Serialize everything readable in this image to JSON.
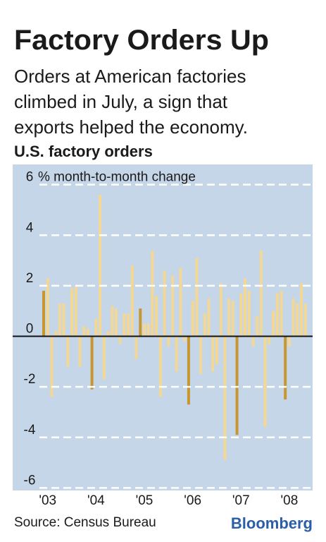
{
  "chart_data": {
    "type": "bar",
    "title": "Factory Orders Up",
    "subtitle": [
      "Orders at American factories",
      "climbed in July, a sign that",
      "exports helped the economy."
    ],
    "chart_title": "U.S. factory orders",
    "y_axis_label": "% month-to-month change",
    "source": "Source: Census Bureau",
    "brand": "Bloomberg",
    "categories": [
      null,
      "'03",
      null,
      null,
      null,
      null,
      null,
      null,
      null,
      null,
      null,
      null,
      null,
      "'04",
      null,
      null,
      null,
      null,
      null,
      null,
      null,
      null,
      null,
      null,
      null,
      "'05",
      null,
      null,
      null,
      null,
      null,
      null,
      null,
      null,
      null,
      null,
      null,
      "'06",
      null,
      null,
      null,
      null,
      null,
      null,
      null,
      null,
      null,
      null,
      null,
      "'07",
      null,
      null,
      null,
      null,
      null,
      null,
      null,
      null,
      null,
      null,
      null,
      "'08",
      null,
      null,
      null,
      null
    ],
    "values": [
      1.8,
      2.3,
      -2.4,
      0.2,
      1.3,
      1.3,
      -1.2,
      1.9,
      2.0,
      -1.2,
      0.4,
      0.3,
      -2.1,
      0.7,
      5.6,
      -1.7,
      0.2,
      1.2,
      1.1,
      -0.3,
      0.9,
      0.9,
      2.8,
      -0.9,
      1.1,
      0.5,
      0.5,
      3.4,
      1.6,
      -2.4,
      2.6,
      -0.4,
      2.4,
      -1.4,
      2.7,
      -0.2,
      -2.7,
      1.4,
      3.1,
      -1.5,
      0.9,
      1.5,
      -1.4,
      -1.1,
      2.1,
      -4.9,
      1.5,
      1.4,
      -3.9,
      1.7,
      2.3,
      1.8,
      -0.4,
      0.8,
      3.4,
      -3.6,
      -0.3,
      1.0,
      1.7,
      1.8,
      -2.5,
      -0.4,
      1.5,
      1.3,
      2.1,
      1.3
    ],
    "colors": [
      "#c8962e",
      "#f2d795",
      "#f2d795",
      "#f2d795",
      "#f2d795",
      "#f2d795",
      "#f2d795",
      "#f2d795",
      "#f2d795",
      "#f2d795",
      "#f2d795",
      "#f2d795",
      "#c8962e",
      "#f2d795",
      "#f2d795",
      "#f2d795",
      "#f2d795",
      "#f2d795",
      "#f2d795",
      "#f2d795",
      "#f2d795",
      "#f2d795",
      "#f2d795",
      "#f2d795",
      "#c8962e",
      "#f2d795",
      "#f2d795",
      "#f2d795",
      "#f2d795",
      "#f2d795",
      "#f2d795",
      "#f2d795",
      "#f2d795",
      "#f2d795",
      "#f2d795",
      "#f2d795",
      "#c8962e",
      "#f2d795",
      "#f2d795",
      "#f2d795",
      "#f2d795",
      "#f2d795",
      "#f2d795",
      "#f2d795",
      "#f2d795",
      "#f2d795",
      "#f2d795",
      "#f2d795",
      "#c8962e",
      "#f2d795",
      "#f2d795",
      "#f2d795",
      "#f2d795",
      "#f2d795",
      "#f2d795",
      "#f2d795",
      "#f2d795",
      "#f2d795",
      "#f2d795",
      "#f2d795",
      "#c8962e",
      "#f2d795",
      "#f2d795",
      "#f2d795",
      "#f2d795",
      "#f2d795"
    ],
    "ylim": [
      -6.1,
      6.8
    ],
    "yticks": [
      -6,
      -4,
      -2,
      0,
      2,
      4,
      6
    ],
    "grid": true,
    "background": "#c6d6e9"
  }
}
